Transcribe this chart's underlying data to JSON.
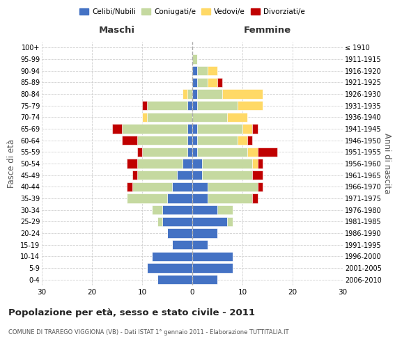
{
  "age_groups": [
    "0-4",
    "5-9",
    "10-14",
    "15-19",
    "20-24",
    "25-29",
    "30-34",
    "35-39",
    "40-44",
    "45-49",
    "50-54",
    "55-59",
    "60-64",
    "65-69",
    "70-74",
    "75-79",
    "80-84",
    "85-89",
    "90-94",
    "95-99",
    "100+"
  ],
  "birth_years": [
    "2006-2010",
    "2001-2005",
    "1996-2000",
    "1991-1995",
    "1986-1990",
    "1981-1985",
    "1976-1980",
    "1971-1975",
    "1966-1970",
    "1961-1965",
    "1956-1960",
    "1951-1955",
    "1946-1950",
    "1941-1945",
    "1936-1940",
    "1931-1935",
    "1926-1930",
    "1921-1925",
    "1916-1920",
    "1911-1915",
    "≤ 1910"
  ],
  "males": {
    "celibi": [
      7,
      9,
      8,
      4,
      5,
      6,
      6,
      5,
      4,
      3,
      2,
      1,
      1,
      1,
      0,
      1,
      0,
      0,
      0,
      0,
      0
    ],
    "coniugati": [
      0,
      0,
      0,
      0,
      0,
      1,
      2,
      8,
      8,
      8,
      9,
      9,
      10,
      13,
      9,
      8,
      1,
      0,
      0,
      0,
      0
    ],
    "vedovi": [
      0,
      0,
      0,
      0,
      0,
      0,
      0,
      0,
      0,
      0,
      0,
      0,
      0,
      0,
      1,
      0,
      1,
      0,
      0,
      0,
      0
    ],
    "divorziati": [
      0,
      0,
      0,
      0,
      0,
      0,
      0,
      0,
      1,
      1,
      2,
      1,
      3,
      2,
      0,
      1,
      0,
      0,
      0,
      0,
      0
    ]
  },
  "females": {
    "nubili": [
      5,
      8,
      8,
      3,
      5,
      7,
      5,
      3,
      3,
      2,
      2,
      1,
      1,
      1,
      0,
      1,
      1,
      1,
      1,
      0,
      0
    ],
    "coniugate": [
      0,
      0,
      0,
      0,
      0,
      1,
      3,
      9,
      10,
      10,
      10,
      10,
      8,
      9,
      7,
      8,
      5,
      2,
      2,
      1,
      0
    ],
    "vedove": [
      0,
      0,
      0,
      0,
      0,
      0,
      0,
      0,
      0,
      0,
      1,
      2,
      2,
      2,
      4,
      5,
      8,
      2,
      2,
      0,
      0
    ],
    "divorziate": [
      0,
      0,
      0,
      0,
      0,
      0,
      0,
      1,
      1,
      2,
      1,
      4,
      1,
      1,
      0,
      0,
      0,
      1,
      0,
      0,
      0
    ]
  },
  "colors": {
    "celibi": "#4472C4",
    "coniugati": "#c5d9a0",
    "vedovi": "#FFD966",
    "divorziati": "#C00000"
  },
  "xlim": 30,
  "title": "Popolazione per età, sesso e stato civile - 2011",
  "subtitle": "COMUNE DI TRAREGO VIGGIONA (VB) - Dati ISTAT 1° gennaio 2011 - Elaborazione TUTTITALIA.IT",
  "xlabel_left": "Maschi",
  "xlabel_right": "Femmine",
  "ylabel_left": "Fasce di età",
  "ylabel_right": "Anni di nascita",
  "legend_labels": [
    "Celibi/Nubili",
    "Coniugati/e",
    "Vedovi/e",
    "Divorziati/e"
  ],
  "bg_color": "#ffffff",
  "grid_color": "#cccccc"
}
